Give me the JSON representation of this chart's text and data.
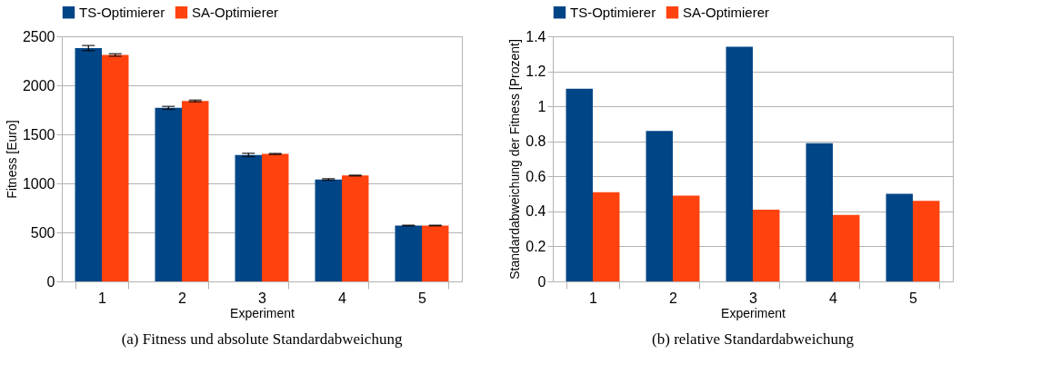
{
  "chart_data": [
    {
      "type": "bar",
      "categories": [
        "1",
        "2",
        "3",
        "4",
        "5"
      ],
      "xlabel": "Experiment",
      "ylabel": "Fitness [Euro]",
      "series": [
        {
          "name": "TS-Optimierer",
          "color": "#004586",
          "values": [
            2380,
            1770,
            1290,
            1040,
            570
          ],
          "errors": [
            26,
            15,
            17,
            8,
            3
          ]
        },
        {
          "name": "SA-Optimierer",
          "color": "#ff420e",
          "values": [
            2310,
            1840,
            1300,
            1080,
            570
          ],
          "errors": [
            12,
            9,
            5,
            4,
            3
          ]
        }
      ],
      "ylim": [
        0,
        2500
      ],
      "yticks": [
        0,
        500,
        1000,
        1500,
        2000,
        2500
      ],
      "grid": "y",
      "legend": "top",
      "annotations": [
        "(a)  Fitness und absolute Standardabweichung"
      ]
    },
    {
      "type": "bar",
      "categories": [
        "1",
        "2",
        "3",
        "4",
        "5"
      ],
      "xlabel": "Experiment",
      "ylabel": "Standardabweichung der Fitness [Prozent]",
      "series": [
        {
          "name": "TS-Optimierer",
          "color": "#004586",
          "values": [
            1.1,
            0.86,
            1.34,
            0.79,
            0.5
          ]
        },
        {
          "name": "SA-Optimierer",
          "color": "#ff420e",
          "values": [
            0.51,
            0.49,
            0.41,
            0.38,
            0.46
          ]
        }
      ],
      "ylim": [
        0,
        1.4
      ],
      "yticks": [
        0,
        0.2,
        0.4,
        0.6,
        0.8,
        1,
        1.2,
        1.4
      ],
      "grid": "y",
      "legend": "top",
      "annotations": [
        "(b)  relative Standardabweichung"
      ]
    }
  ]
}
